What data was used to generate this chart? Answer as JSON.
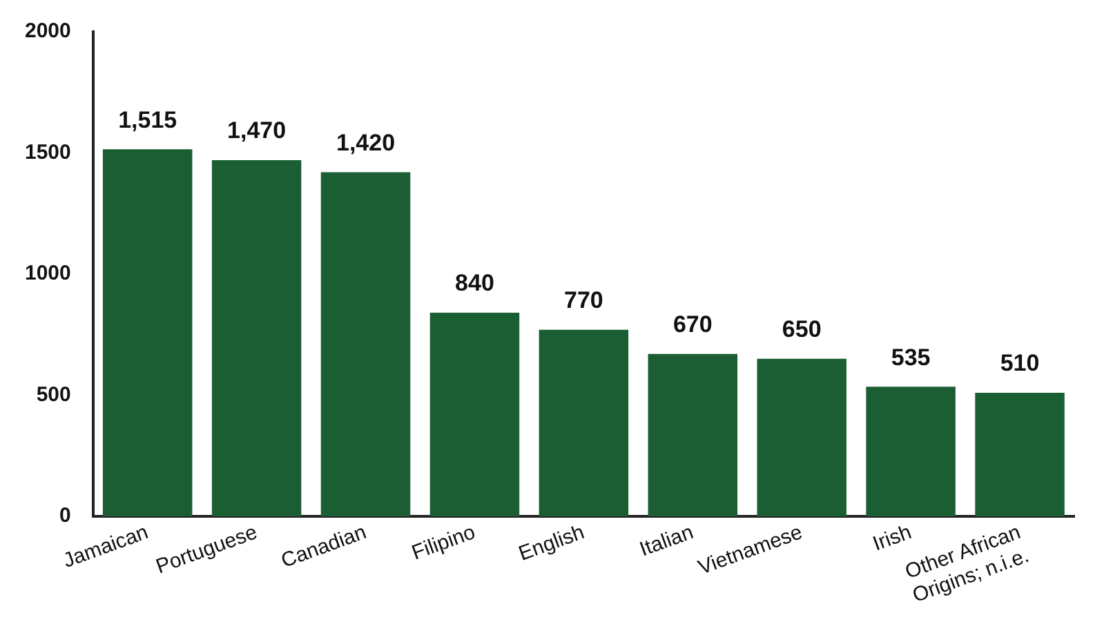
{
  "chart_data": {
    "type": "bar",
    "categories": [
      "Jamaican",
      "Portuguese",
      "Canadian",
      "Filipino",
      "English",
      "Italian",
      "Vietnamese",
      "Irish",
      "Other African Origins; n.i.e."
    ],
    "values": [
      1515,
      1470,
      1420,
      840,
      770,
      670,
      650,
      535,
      510
    ],
    "value_labels": [
      "1,515",
      "1,470",
      "1,420",
      "840",
      "770",
      "670",
      "650",
      "535",
      "510"
    ],
    "color": "#1b5e34",
    "ylim": [
      0,
      2000
    ],
    "yticks": [
      0,
      500,
      1000,
      1500,
      2000
    ],
    "grid": false,
    "legend": false
  }
}
